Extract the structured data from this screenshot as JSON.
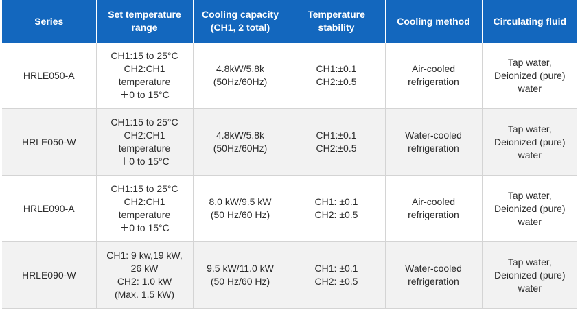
{
  "headers": [
    [
      "Series"
    ],
    [
      "Set temperature",
      "range"
    ],
    [
      "Cooling capacity",
      "(CH1, 2 total)"
    ],
    [
      "Temperature",
      "stability"
    ],
    [
      "Cooling method"
    ],
    [
      "Circulating fluid"
    ]
  ],
  "rows": [
    {
      "series": "HRLE050-A",
      "temperature_range": [
        "CH1:15 to 25°C",
        "CH2:CH1",
        "temperature",
        "＋0 to 15°C"
      ],
      "cooling_capacity": [
        "4.8kW/5.8k",
        "(50Hz/60Hz)"
      ],
      "stability": [
        "CH1:±0.1",
        "CH2:±0.5"
      ],
      "cooling_method": [
        "Air-cooled",
        "refrigeration"
      ],
      "circulating_fluid": [
        "Tap water,",
        "Deionized (pure)",
        "water"
      ]
    },
    {
      "series": "HRLE050-W",
      "temperature_range": [
        "CH1:15 to 25°C",
        "CH2:CH1",
        "temperature",
        "＋0 to 15°C"
      ],
      "cooling_capacity": [
        "4.8kW/5.8k",
        "(50Hz/60Hz)"
      ],
      "stability": [
        "CH1:±0.1",
        "CH2:±0.5"
      ],
      "cooling_method": [
        "Water-cooled",
        "refrigeration"
      ],
      "circulating_fluid": [
        "Tap water,",
        "Deionized (pure)",
        "water"
      ]
    },
    {
      "series": "HRLE090-A",
      "temperature_range": [
        "CH1:15 to 25°C",
        "CH2:CH1",
        "temperature",
        "＋0 to 15°C"
      ],
      "cooling_capacity": [
        "8.0 kW/9.5 kW",
        "(50 Hz/60 Hz)"
      ],
      "stability": [
        "CH1: ±0.1",
        "CH2: ±0.5"
      ],
      "cooling_method": [
        "Air-cooled",
        "refrigeration"
      ],
      "circulating_fluid": [
        "Tap water,",
        "Deionized (pure)",
        "water"
      ]
    },
    {
      "series": "HRLE090-W",
      "temperature_range": [
        "CH1: 9 kw,19 kW,",
        "26 kW",
        "CH2: 1.0 kW",
        "(Max. 1.5 kW)"
      ],
      "cooling_capacity": [
        "9.5 kW/11.0 kW",
        "(50 Hz/60 Hz)"
      ],
      "stability": [
        "CH1: ±0.1",
        "CH2: ±0.5"
      ],
      "cooling_method": [
        "Water-cooled",
        "refrigeration"
      ],
      "circulating_fluid": [
        "Tap water,",
        "Deionized (pure)",
        "water"
      ]
    }
  ]
}
